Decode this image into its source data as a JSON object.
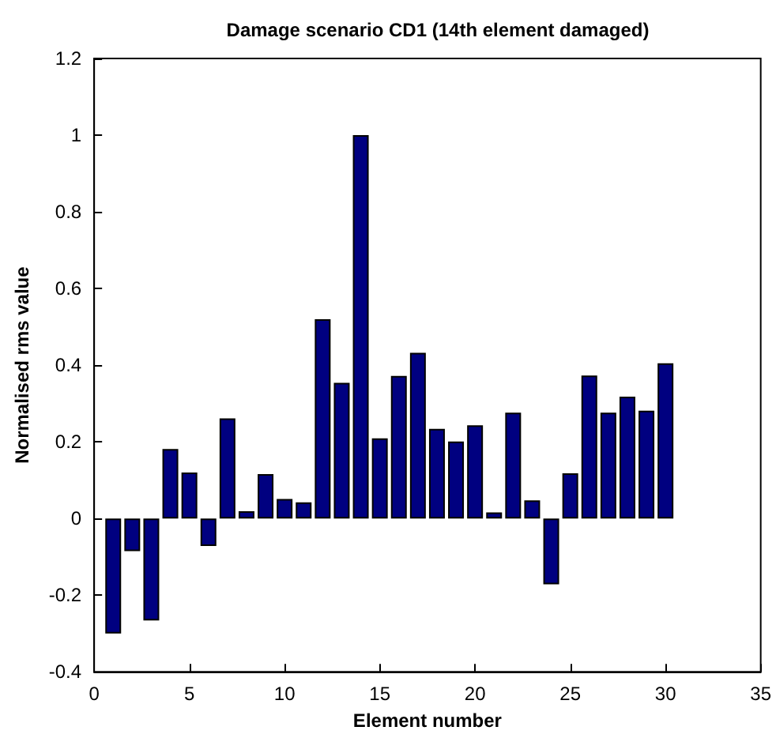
{
  "chart_data": {
    "type": "bar",
    "title": "Damage scenario CD1 (14th element damaged)",
    "xlabel": "Element number",
    "ylabel": "Normalised rms value",
    "x": [
      1,
      2,
      3,
      4,
      5,
      6,
      7,
      8,
      9,
      10,
      11,
      12,
      13,
      14,
      15,
      16,
      17,
      18,
      19,
      20,
      21,
      22,
      23,
      24,
      25,
      26,
      27,
      28,
      29,
      30
    ],
    "values": [
      -0.3,
      -0.085,
      -0.266,
      0.181,
      0.12,
      -0.072,
      0.261,
      0.019,
      0.116,
      0.051,
      0.042,
      0.52,
      0.354,
      1.0,
      0.209,
      0.372,
      0.432,
      0.234,
      0.201,
      0.243,
      0.016,
      0.276,
      0.047,
      -0.172,
      0.118,
      0.373,
      0.276,
      0.318,
      0.281,
      0.405
    ],
    "color": "#000080",
    "xlim": [
      0,
      35
    ],
    "xticks": [
      0,
      5,
      10,
      15,
      20,
      25,
      30,
      35
    ],
    "ylim": [
      -0.4,
      1.2
    ],
    "yticks": [
      -0.4,
      -0.2,
      0,
      0.2,
      0.4,
      0.6,
      0.8,
      1,
      1.2
    ],
    "grid": false
  }
}
